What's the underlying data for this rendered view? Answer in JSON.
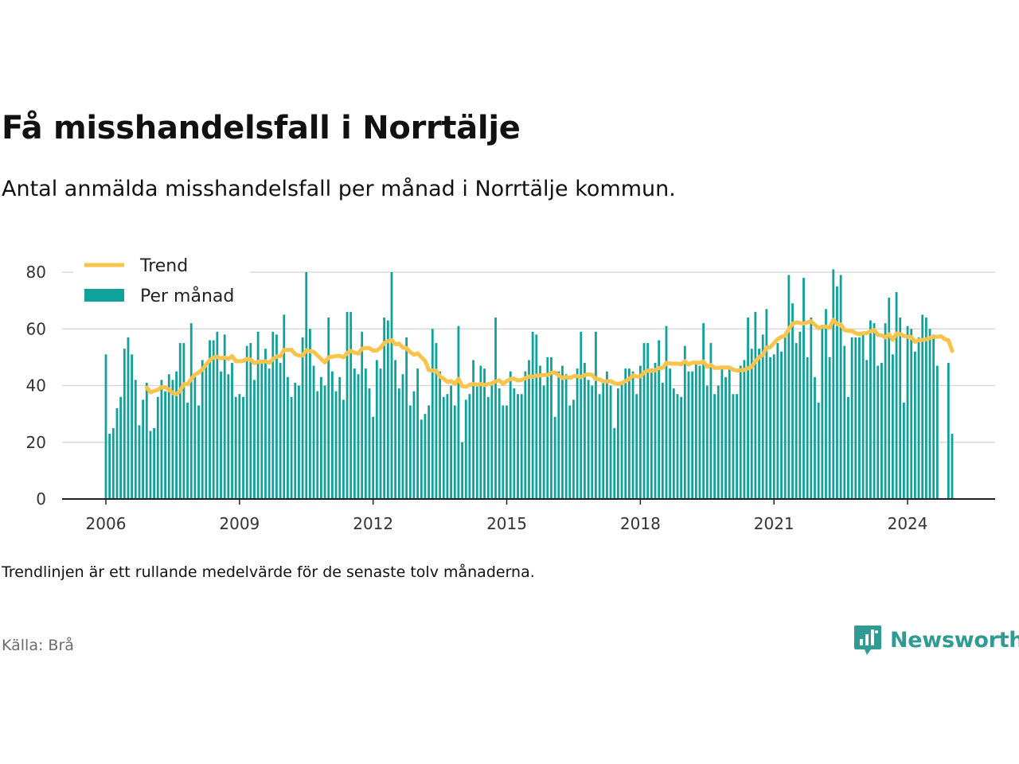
{
  "header": {
    "title": "Få misshandelsfall i Norrtälje",
    "subtitle": "Antal anmälda misshandelsfall per månad i Norrtälje kommun."
  },
  "footer": {
    "note": "Trendlinjen är ett rullande medelvärde för de senaste tolv månaderna.",
    "source": "Källa: Brå",
    "logo_text": "Newsworthy"
  },
  "colors": {
    "bar": "#0fa29b",
    "trend": "#f9c34c",
    "grid": "#d9d9d9",
    "axis": "#222222",
    "logo": "#2f9b93"
  },
  "chart_data": {
    "type": "bar",
    "x_start": "2006-01",
    "x_end": "2024-01",
    "x_ticks": [
      "2006",
      "2009",
      "2012",
      "2015",
      "2018",
      "2021",
      "2024"
    ],
    "y_ticks": [
      "0",
      "20",
      "40",
      "60",
      "80"
    ],
    "ylim": [
      0,
      80
    ],
    "grid": true,
    "legend_position": "top-left",
    "series": [
      {
        "name": "Per månad",
        "type": "bar",
        "values": [
          51,
          23,
          25,
          32,
          36,
          53,
          57,
          51,
          42,
          26,
          35,
          41,
          24,
          25,
          36,
          42,
          38,
          44,
          42,
          45,
          55,
          55,
          34,
          62,
          44,
          33,
          49,
          48,
          56,
          56,
          59,
          45,
          58,
          44,
          48,
          36,
          37,
          36,
          54,
          55,
          42,
          59,
          48,
          53,
          46,
          59,
          58,
          48,
          65,
          43,
          36,
          41,
          40,
          57,
          80,
          60,
          47,
          38,
          43,
          40,
          64,
          45,
          38,
          43,
          35,
          66,
          66,
          46,
          44,
          59,
          46,
          39,
          29,
          49,
          46,
          64,
          63,
          80,
          49,
          39,
          44,
          57,
          33,
          38,
          46,
          28,
          30,
          33,
          60,
          55,
          45,
          36,
          37,
          40,
          33,
          61,
          20,
          35,
          37,
          49,
          40,
          47,
          46,
          36,
          40,
          64,
          39,
          33,
          33,
          45,
          39,
          37,
          37,
          45,
          49,
          59,
          58,
          47,
          40,
          50,
          50,
          29,
          45,
          47,
          44,
          33,
          35,
          46,
          59,
          48,
          42,
          40,
          59,
          37,
          41,
          45,
          40,
          25,
          39,
          41,
          46,
          46,
          45,
          37,
          47,
          55,
          55,
          46,
          48,
          56,
          41,
          61,
          46,
          39,
          37,
          36,
          54,
          45,
          45,
          48,
          47,
          62,
          40,
          55,
          37,
          40,
          46,
          43,
          47,
          37,
          37,
          47,
          49,
          64,
          53,
          66,
          53,
          58,
          67,
          50,
          51,
          55,
          52,
          57,
          79,
          69,
          55,
          59,
          78,
          50,
          64,
          43,
          34,
          61,
          67,
          50,
          81,
          75,
          79,
          54,
          36,
          57,
          57,
          57,
          58,
          49,
          63,
          62,
          47,
          48,
          62,
          71,
          51,
          73,
          64,
          34,
          61,
          60,
          52,
          57,
          65,
          64,
          60,
          58,
          47,
          0,
          0,
          48,
          23
        ],
        "color": "#0fa29b"
      },
      {
        "name": "Trend",
        "type": "line",
        "values": [
          null,
          null,
          null,
          null,
          null,
          null,
          null,
          null,
          null,
          null,
          null,
          39.3,
          37.6,
          38.1,
          38.5,
          39.4,
          39.4,
          38.6,
          37.4,
          37.0,
          38.1,
          40.5,
          40.5,
          42.3,
          43.9,
          44.6,
          45.7,
          47.4,
          49.0,
          49.9,
          50.1,
          49.6,
          49.9,
          49.4,
          50.4,
          48.6,
          48.6,
          48.7,
          49.4,
          49.2,
          47.9,
          48.4,
          48.4,
          48.6,
          48.0,
          49.3,
          50.3,
          50.3,
          52.6,
          52.6,
          52.6,
          51.1,
          50.6,
          50.6,
          52.5,
          52.1,
          51.9,
          50.6,
          49.4,
          48.1,
          50.0,
          50.2,
          50.4,
          50.5,
          50.0,
          51.5,
          52.2,
          51.6,
          51.3,
          53.0,
          53.3,
          53.2,
          52.3,
          52.4,
          53.3,
          55.0,
          55.7,
          56.0,
          54.6,
          54.8,
          53.4,
          53.2,
          51.8,
          50.9,
          51.4,
          50.0,
          48.7,
          45.5,
          45.3,
          45.3,
          43.2,
          42.4,
          41.3,
          41.6,
          40.6,
          42.4,
          39.8,
          39.6,
          40.3,
          40.6,
          40.3,
          40.6,
          40.2,
          40.5,
          40.8,
          41.5,
          41.9,
          40.6,
          41.6,
          42.3,
          42.4,
          41.8,
          42.0,
          42.6,
          43.2,
          43.1,
          43.5,
          43.6,
          43.7,
          43.7,
          44.5,
          44.6,
          43.6,
          42.7,
          43.0,
          42.7,
          43.3,
          43.3,
          43.0,
          43.7,
          44.0,
          43.8,
          42.3,
          42.2,
          41.5,
          41.5,
          41.6,
          40.9,
          40.6,
          40.9,
          41.6,
          42.3,
          43.6,
          43.2,
          43.2,
          44.6,
          45.3,
          45.2,
          45.4,
          46.2,
          46.2,
          48.0,
          47.8,
          47.7,
          47.8,
          47.5,
          48.6,
          47.4,
          48.1,
          48.1,
          48.0,
          48.5,
          46.6,
          47.3,
          46.2,
          46.3,
          46.4,
          46.4,
          46.4,
          45.6,
          45.3,
          45.4,
          45.5,
          46.1,
          46.6,
          48.6,
          50.0,
          50.8,
          53.4,
          53.5,
          55.0,
          56.4,
          57.2,
          57.6,
          60.0,
          61.8,
          62.3,
          62.1,
          61.9,
          62.3,
          62.7,
          61.4,
          60.2,
          60.8,
          60.8,
          60.4,
          63.2,
          61.7,
          61.6,
          59.6,
          59.3,
          59.3,
          58.5,
          58.1,
          58.5,
          58.5,
          59.2,
          59.6,
          57.9,
          57.7,
          57.0,
          58.1,
          56.1,
          58.4,
          58.2,
          57.5,
          57.2,
          57.1,
          55.4,
          56.0,
          56.1,
          56.3,
          56.8,
          57.3,
          57.2,
          57.4,
          56.4,
          56.0,
          52.2
        ],
        "color": "#f9c34c"
      }
    ]
  }
}
